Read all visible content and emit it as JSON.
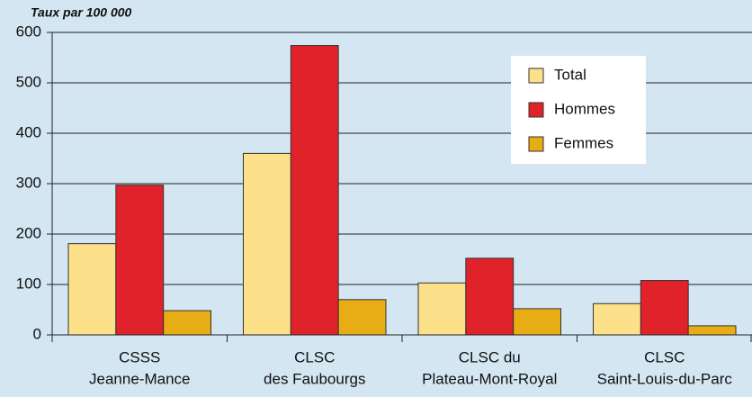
{
  "chart_data": {
    "type": "bar",
    "y_label": "Taux par 100 000",
    "categories": [
      [
        "CSSS",
        "Jeanne-Mance"
      ],
      [
        "CLSC",
        "des Faubourgs"
      ],
      [
        "CLSC du",
        "Plateau-Mont-Royal"
      ],
      [
        "CLSC",
        "Saint-Louis-du-Parc"
      ]
    ],
    "series": [
      {
        "name": "Total",
        "color": "#fde08a",
        "values": [
          181,
          360,
          103,
          62
        ]
      },
      {
        "name": "Hommes",
        "color": "#e0222a",
        "values": [
          297,
          574,
          152,
          108
        ]
      },
      {
        "name": "Femmes",
        "color": "#e8ac14",
        "values": [
          48,
          70,
          52,
          18
        ]
      }
    ],
    "ylim": [
      0,
      600
    ],
    "yticks": [
      0,
      100,
      200,
      300,
      400,
      500,
      600
    ],
    "grid": true,
    "legend": "upper right"
  }
}
